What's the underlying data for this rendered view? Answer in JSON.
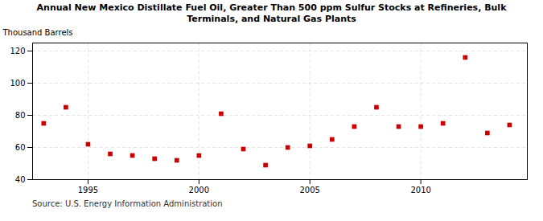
{
  "chart_data": {
    "type": "scatter",
    "title": "Annual New Mexico Distillate Fuel Oil, Greater Than 500 ppm Sulfur Stocks at Refineries, Bulk\nTerminals, and Natural Gas Plants",
    "ylabel": "Thousand Barrels",
    "source": "Source: U.S. Energy Information Administration",
    "x": [
      1993,
      1994,
      1995,
      1996,
      1997,
      1998,
      1999,
      2000,
      2001,
      2002,
      2003,
      2004,
      2005,
      2006,
      2007,
      2008,
      2009,
      2010,
      2011,
      2012,
      2013,
      2014
    ],
    "values": [
      75,
      85,
      62,
      56,
      55,
      53,
      52,
      55,
      81,
      59,
      49,
      60,
      61,
      65,
      73,
      85,
      73,
      73,
      75,
      116,
      69,
      74
    ],
    "color": "#cc0000",
    "marker": "square",
    "xlim": [
      1992.5,
      2014.8
    ],
    "xticks": [
      1995,
      2000,
      2005,
      2010
    ],
    "ylim": [
      40,
      125
    ],
    "yticks": [
      40,
      60,
      80,
      100,
      120
    ],
    "grid": true
  }
}
